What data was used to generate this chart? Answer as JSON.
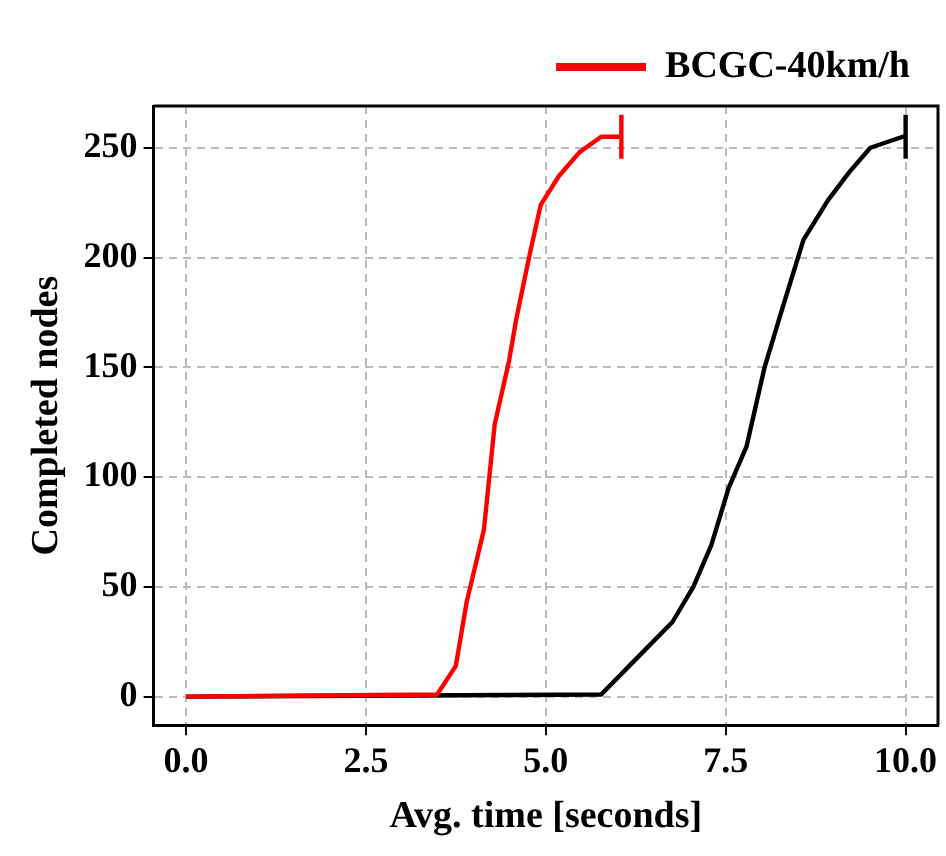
{
  "chart_data": {
    "type": "line",
    "xlabel": "Avg. time [seconds]",
    "ylabel": "Completed nodes",
    "xlim": [
      -0.45,
      10.45
    ],
    "ylim": [
      -13,
      269
    ],
    "xticks": [
      {
        "value": 0,
        "label": "0.0"
      },
      {
        "value": 2.5,
        "label": "2.5"
      },
      {
        "value": 5,
        "label": "5.0"
      },
      {
        "value": 7.5,
        "label": "7.5"
      },
      {
        "value": 10,
        "label": "10.0"
      }
    ],
    "yticks": [
      0,
      50,
      100,
      150,
      200,
      250
    ],
    "grid": true,
    "legend": "top",
    "marker": "none",
    "line_style": "solid",
    "series": [
      {
        "name": "BCGC-40km/h",
        "color": "#ff0000",
        "x": [
          0,
          3.49,
          3.75,
          3.9,
          4.14,
          4.29,
          4.49,
          4.59,
          4.78,
          4.93,
          5.18,
          5.47,
          5.77,
          6.05
        ],
        "values": [
          0,
          1,
          14,
          43,
          76,
          124,
          153,
          172,
          202,
          224,
          237,
          248,
          255,
          255
        ],
        "errors": [
          null,
          null,
          null,
          null,
          null,
          null,
          null,
          null,
          null,
          null,
          null,
          null,
          null,
          [
            245,
            265
          ]
        ]
      },
      {
        "color": "#000000",
        "x": [
          0,
          5.77,
          6.16,
          6.76,
          7.05,
          7.3,
          7.54,
          7.79,
          8.04,
          8.28,
          8.58,
          8.92,
          9.22,
          9.51,
          9.96,
          10
        ],
        "values": [
          0,
          1,
          14,
          34,
          50,
          69,
          95,
          114,
          150,
          176,
          208,
          226,
          239,
          250,
          255,
          255
        ],
        "errors": [
          null,
          null,
          null,
          null,
          null,
          null,
          null,
          null,
          null,
          null,
          null,
          null,
          null,
          null,
          null,
          [
            245,
            265
          ]
        ]
      }
    ]
  }
}
